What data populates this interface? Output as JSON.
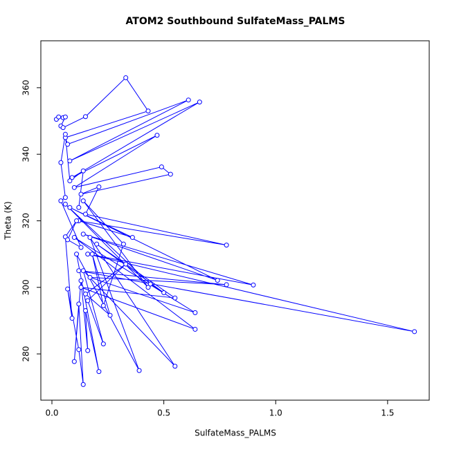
{
  "chart_data": {
    "type": "line",
    "markers": true,
    "title": "ATOM2 Southbound SulfateMass_PALMS",
    "x_label": "SulfateMass_PALMS",
    "y_label": "Theta (K)",
    "color": "#0000ff",
    "x": [
      0.02,
      0.03,
      0.05,
      0.06,
      0.04,
      0.05,
      0.15,
      0.33,
      0.43,
      0.06,
      0.07,
      0.61,
      0.08,
      0.66,
      0.09,
      0.47,
      0.1,
      0.49,
      0.53,
      0.13,
      0.21,
      0.15,
      0.78,
      0.12,
      0.36,
      0.08,
      0.74,
      0.14,
      0.9,
      0.16,
      1.62,
      0.12,
      0.78,
      0.17,
      0.64,
      0.1,
      0.64,
      0.13,
      0.55,
      0.2,
      0.5,
      0.44,
      0.06,
      0.43,
      0.14,
      0.32,
      0.23,
      0.18,
      0.26,
      0.15,
      0.33,
      0.16,
      0.23,
      0.14,
      0.55,
      0.17,
      0.39,
      0.11,
      0.21,
      0.15,
      0.16,
      0.13,
      0.1,
      0.12,
      0.14,
      0.12,
      0.07,
      0.09,
      0.06,
      0.11,
      0.07,
      0.13,
      0.04,
      0.06,
      0.04,
      0.06,
      0.08,
      0.14,
      0.12
    ],
    "y": [
      350.5,
      351.2,
      351,
      351.2,
      348.5,
      348,
      351.3,
      363,
      353,
      345,
      343,
      356.3,
      338,
      355.7,
      333,
      345.7,
      330,
      336.2,
      334,
      328,
      330.2,
      322,
      312.7,
      320,
      315,
      324,
      302.1,
      316,
      300.7,
      310,
      286.7,
      305,
      300.8,
      303,
      292.4,
      315,
      287.4,
      300,
      296.8,
      313,
      298.4,
      301,
      325,
      300,
      326,
      313,
      294.5,
      310,
      291.6,
      298,
      307,
      296,
      283,
      305,
      276.3,
      315,
      275,
      310,
      274.7,
      293,
      281,
      302,
      277.7,
      295,
      270.8,
      281.3,
      299.5,
      290.7,
      315.2,
      320,
      314.3,
      312,
      326,
      327,
      337.5,
      346,
      332,
      335,
      324
    ],
    "xlim": [
      -0.0495,
      1.686
    ],
    "ylim": [
      266.1,
      374.1
    ],
    "xticks": [
      {
        "value": 0,
        "label": "0.0"
      },
      0.5,
      {
        "value": 1,
        "label": "1.0"
      },
      1.5
    ],
    "yticks": [
      280,
      300,
      320,
      340,
      360
    ]
  }
}
